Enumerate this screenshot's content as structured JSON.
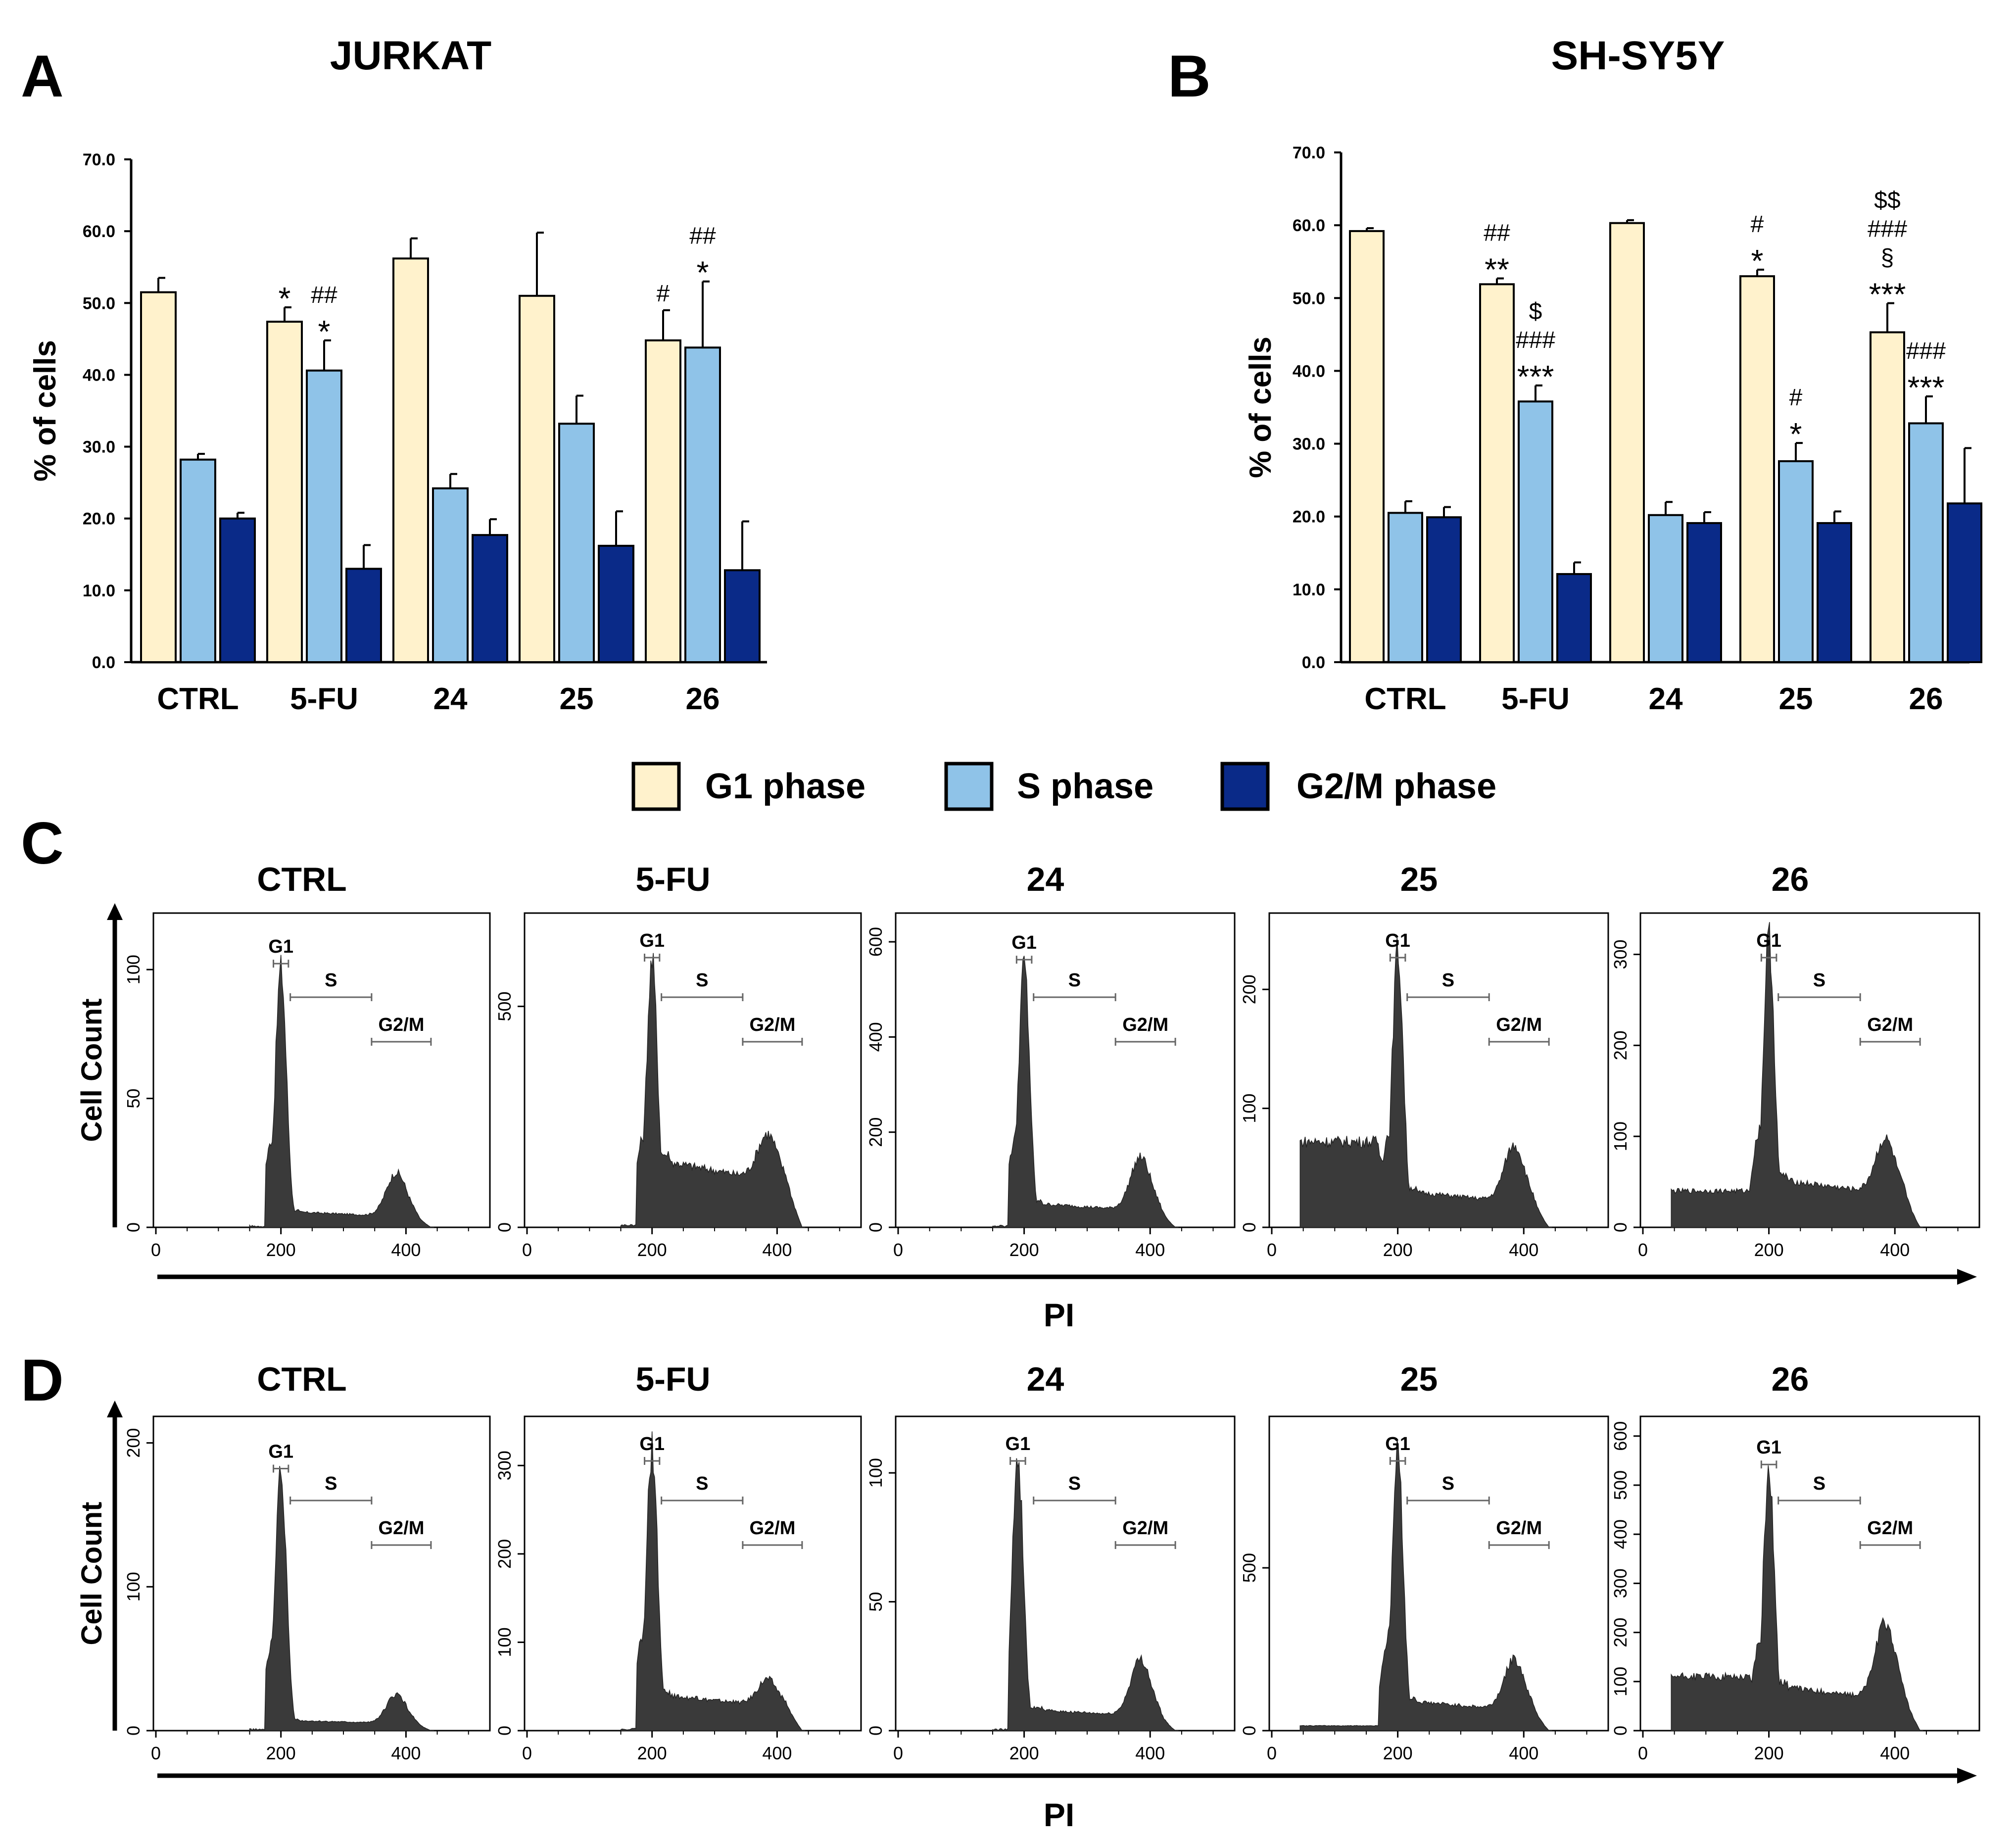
{
  "colors": {
    "g1": "#FFF2CC",
    "s": "#8FC3E8",
    "g2m": "#0A2A88",
    "hist": "#3a3a3a",
    "axis": "#000000"
  },
  "legend": {
    "g1": "G1 phase",
    "s": "S phase",
    "g2m": "G2/M phase"
  },
  "gate_labels": {
    "g1": "G1",
    "s": "S",
    "g2m": "G2/M"
  },
  "chart_data": [
    {
      "panel": "A",
      "title": "JURKAT",
      "type": "bar",
      "ylabel": "% of cells",
      "ylim": [
        0,
        70
      ],
      "yticks": [
        "0.0",
        "10.0",
        "20.0",
        "30.0",
        "40.0",
        "50.0",
        "60.0",
        "70.0"
      ],
      "categories": [
        "CTRL",
        "5-FU",
        "24",
        "25",
        "26"
      ],
      "series": [
        {
          "name": "G1 phase",
          "values": [
            51.5,
            47.4,
            56.2,
            51.0,
            44.8
          ],
          "errors": [
            2.0,
            2.0,
            2.8,
            8.8,
            4.2
          ]
        },
        {
          "name": "S phase",
          "values": [
            28.2,
            40.6,
            24.2,
            33.2,
            43.8
          ],
          "errors": [
            0.8,
            4.2,
            2.0,
            3.9,
            9.2
          ]
        },
        {
          "name": "G2/M phase",
          "values": [
            20.0,
            13.0,
            17.7,
            16.2,
            12.8
          ],
          "errors": [
            0.8,
            3.3,
            2.2,
            4.8,
            6.8
          ]
        }
      ],
      "annotations": [
        {
          "category": "5-FU",
          "series": "G1 phase",
          "lines": [
            "*"
          ]
        },
        {
          "category": "5-FU",
          "series": "S phase",
          "lines": [
            "##",
            "*"
          ]
        },
        {
          "category": "26",
          "series": "G1 phase",
          "lines": [
            "#"
          ]
        },
        {
          "category": "26",
          "series": "S phase",
          "lines": [
            "##",
            "*"
          ]
        }
      ]
    },
    {
      "panel": "B",
      "title": "SH-SY5Y",
      "type": "bar",
      "ylabel": "% of cells",
      "ylim": [
        0,
        70
      ],
      "yticks": [
        "0.0",
        "10.0",
        "20.0",
        "30.0",
        "40.0",
        "50.0",
        "60.0",
        "70.0"
      ],
      "categories": [
        "CTRL",
        "5-FU",
        "24",
        "25",
        "26"
      ],
      "series": [
        {
          "name": "G1 phase",
          "values": [
            59.2,
            51.9,
            60.3,
            53.0,
            45.3
          ],
          "errors": [
            0.4,
            0.8,
            0.4,
            0.9,
            4.0
          ]
        },
        {
          "name": "S phase",
          "values": [
            20.5,
            35.8,
            20.2,
            27.6,
            32.8
          ],
          "errors": [
            1.6,
            2.2,
            1.8,
            2.5,
            3.7
          ]
        },
        {
          "name": "G2/M phase",
          "values": [
            19.9,
            12.1,
            19.1,
            19.1,
            21.8
          ],
          "errors": [
            1.4,
            1.6,
            1.5,
            1.6,
            7.6
          ]
        }
      ],
      "annotations": [
        {
          "category": "5-FU",
          "series": "G1 phase",
          "lines": [
            "##",
            "**"
          ]
        },
        {
          "category": "5-FU",
          "series": "S phase",
          "lines": [
            "$",
            "###",
            "***"
          ]
        },
        {
          "category": "25",
          "series": "G1 phase",
          "lines": [
            "#",
            "*"
          ]
        },
        {
          "category": "25",
          "series": "S phase",
          "lines": [
            "#",
            "*"
          ]
        },
        {
          "category": "26",
          "series": "G1 phase",
          "lines": [
            "$$",
            "###",
            "§",
            "***"
          ]
        },
        {
          "category": "26",
          "series": "S phase",
          "lines": [
            "###",
            "***"
          ]
        }
      ]
    },
    {
      "panel": "C",
      "type": "area",
      "xlabel": "PI",
      "ylabel": "Cell Count",
      "histograms": [
        {
          "title": "CTRL",
          "ymax": 120,
          "yticks": [
            0,
            50,
            100
          ],
          "peak": 100,
          "g2_height": 17,
          "s_level": 6,
          "left_level": 0
        },
        {
          "title": "5-FU",
          "ymax": 700,
          "yticks": [
            0,
            500
          ],
          "peak": 600,
          "g2_height": 105,
          "s_level": 150,
          "left_level": 0
        },
        {
          "title": "24",
          "ymax": 650,
          "yticks": [
            0,
            200,
            400,
            600
          ],
          "peak": 550,
          "g2_height": 112,
          "s_level": 50,
          "left_level": 0
        },
        {
          "title": "25",
          "ymax": 260,
          "yticks": [
            0,
            100,
            200
          ],
          "peak": 232,
          "g2_height": 48,
          "s_level": 30,
          "left_level": 72
        },
        {
          "title": "26",
          "ymax": 340,
          "yticks": [
            0,
            100,
            200,
            300
          ],
          "peak": 318,
          "g2_height": 60,
          "s_level": 52,
          "left_level": 40
        }
      ],
      "xticks": [
        0,
        200,
        400
      ]
    },
    {
      "panel": "D",
      "type": "area",
      "xlabel": "PI",
      "ylabel": "Cell Count",
      "histograms": [
        {
          "title": "CTRL",
          "ymax": 215,
          "yticks": [
            0,
            100,
            200
          ],
          "peak": 178,
          "g2_height": 20,
          "s_level": 7,
          "left_level": 0
        },
        {
          "title": "5-FU",
          "ymax": 350,
          "yticks": [
            0,
            100,
            200,
            300
          ],
          "peak": 320,
          "g2_height": 30,
          "s_level": 40,
          "left_level": 0
        },
        {
          "title": "24",
          "ymax": 120,
          "yticks": [
            0,
            50,
            100
          ],
          "peak": 105,
          "g2_height": 22,
          "s_level": 8,
          "left_level": 0
        },
        {
          "title": "25",
          "ymax": 950,
          "yticks": [
            0,
            500
          ],
          "peak": 860,
          "g2_height": 155,
          "s_level": 90,
          "left_level": 15
        },
        {
          "title": "26",
          "ymax": 630,
          "yticks": [
            0,
            100,
            200,
            300,
            400,
            500,
            600
          ],
          "peak": 530,
          "g2_height": 155,
          "s_level": 90,
          "left_level": 110
        }
      ],
      "xticks": [
        0,
        200,
        400
      ]
    }
  ]
}
